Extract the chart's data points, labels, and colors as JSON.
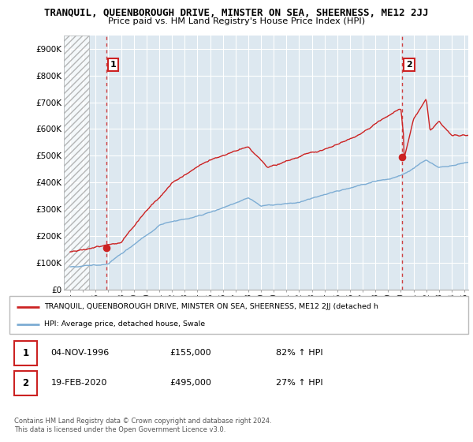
{
  "title": "TRANQUIL, QUEENBOROUGH DRIVE, MINSTER ON SEA, SHEERNESS, ME12 2JJ",
  "subtitle": "Price paid vs. HM Land Registry's House Price Index (HPI)",
  "ylim": [
    0,
    950000
  ],
  "yticks": [
    0,
    100000,
    200000,
    300000,
    400000,
    500000,
    600000,
    700000,
    800000,
    900000
  ],
  "ytick_labels": [
    "£0",
    "£100K",
    "£200K",
    "£300K",
    "£400K",
    "£500K",
    "£600K",
    "£700K",
    "£800K",
    "£900K"
  ],
  "hpi_color": "#7dadd4",
  "price_color": "#cc2222",
  "sale1_year": 1996.84,
  "sale1_price": 155000,
  "sale2_year": 2020.12,
  "sale2_price": 495000,
  "legend_price_label": "TRANQUIL, QUEENBOROUGH DRIVE, MINSTER ON SEA, SHEERNESS, ME12 2JJ (detached h",
  "legend_hpi_label": "HPI: Average price, detached house, Swale",
  "note1_label": "1",
  "note1_date": "04-NOV-1996",
  "note1_price": "£155,000",
  "note1_pct": "82% ↑ HPI",
  "note2_label": "2",
  "note2_date": "19-FEB-2020",
  "note2_price": "£495,000",
  "note2_pct": "27% ↑ HPI",
  "copyright": "Contains HM Land Registry data © Crown copyright and database right 2024.\nThis data is licensed under the Open Government Licence v3.0.",
  "x_start_year": 1994,
  "x_end_year": 2025,
  "xtick_years": [
    1994,
    1995,
    1996,
    1997,
    1998,
    1999,
    2000,
    2001,
    2002,
    2003,
    2004,
    2005,
    2006,
    2007,
    2008,
    2009,
    2010,
    2011,
    2012,
    2013,
    2014,
    2015,
    2016,
    2017,
    2018,
    2019,
    2020,
    2021,
    2022,
    2023,
    2024,
    2025
  ],
  "plot_bg_color": "#dde8f0",
  "hatch_region_end": 1995.5
}
